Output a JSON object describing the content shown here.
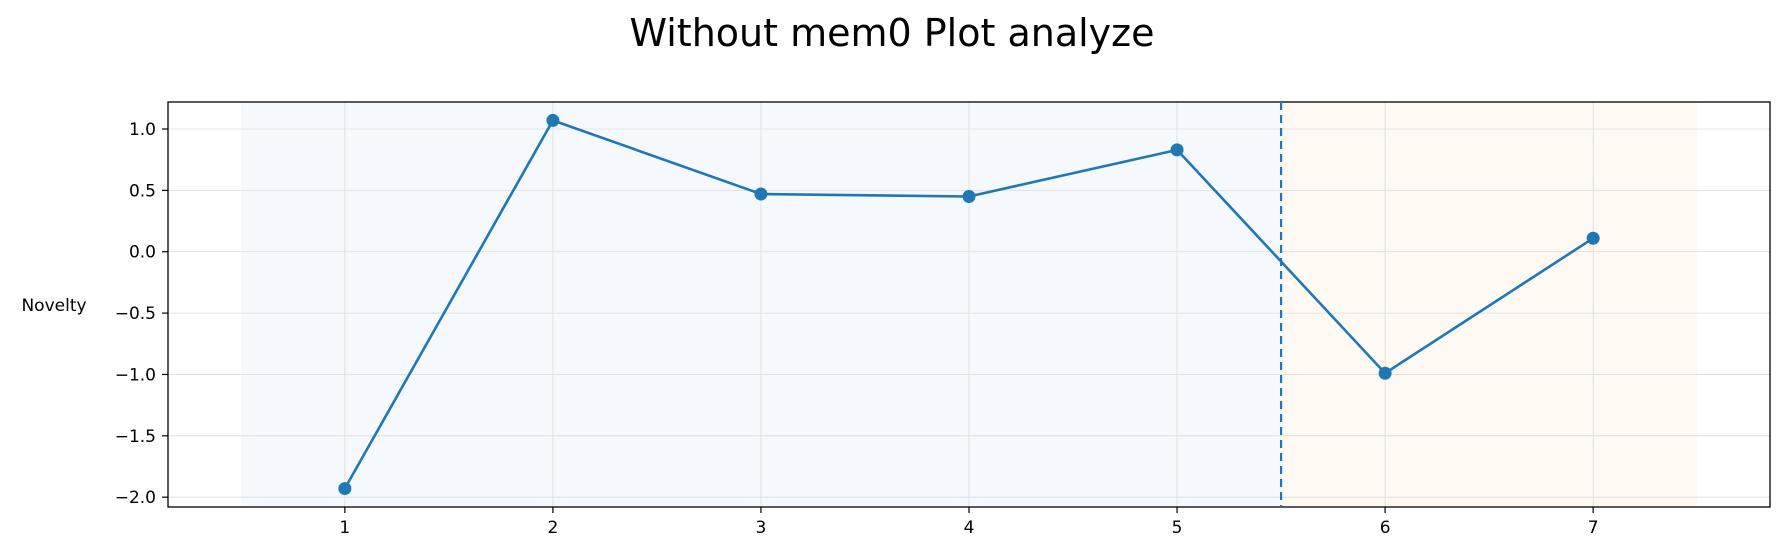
{
  "chart_data": {
    "type": "line",
    "title": "Without mem0 Plot analyze",
    "xlabel": "",
    "ylabel": "Novelty",
    "x": [
      1,
      2,
      3,
      4,
      5,
      6,
      7
    ],
    "series": [
      {
        "values": [
          -1.93,
          1.07,
          0.47,
          0.45,
          0.83,
          -0.99,
          0.11
        ]
      }
    ],
    "xticks": [
      "1",
      "2",
      "3",
      "4",
      "5",
      "6",
      "7"
    ],
    "yticks": [
      "−2.0",
      "−1.5",
      "−1.0",
      "−0.5",
      "0.0",
      "0.5",
      "1.0"
    ],
    "ytick_values": [
      -2.0,
      -1.5,
      -1.0,
      -0.5,
      0.0,
      0.5,
      1.0
    ],
    "xlim": [
      0.15,
      7.85
    ],
    "ylim": [
      -2.08,
      1.22
    ],
    "divider_x": 5.5,
    "shaded_regions": [
      {
        "from": 0.5,
        "to": 5.5,
        "color": "#f5f8fc"
      },
      {
        "from": 5.5,
        "to": 7.5,
        "color": "#fef9f3"
      }
    ],
    "grid": true,
    "line_color": "#1f77b4",
    "divider_color": "#1f77b4"
  }
}
